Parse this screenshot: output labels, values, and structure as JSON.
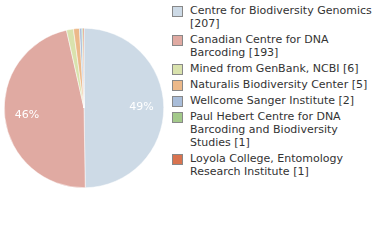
{
  "chart_data": {
    "type": "pie",
    "categories": [
      "Centre for Biodiversity Genomics [207]",
      "Canadian Centre for DNA Barcoding [193]",
      "Mined from GenBank, NCBI [6]",
      "Naturalis Biodiversity Center [5]",
      "Wellcome Sanger Institute [2]",
      "Paul Hebert Centre for DNA Barcoding and Biodiversity Studies [1]",
      "Loyola College, Entomology Research Institute [1]"
    ],
    "values": [
      49.4,
      46.4,
      1.4,
      1.2,
      0.5,
      0.2,
      0.2
    ],
    "value_labels": [
      "49%",
      "46%",
      null,
      null,
      null,
      null,
      null
    ],
    "colors": [
      "#cddae6",
      "#e0aaa2",
      "#d9e2ad",
      "#ecb98a",
      "#a9bdd9",
      "#a3c98a",
      "#d9734f"
    ],
    "data_labels": true,
    "legend": "right"
  }
}
